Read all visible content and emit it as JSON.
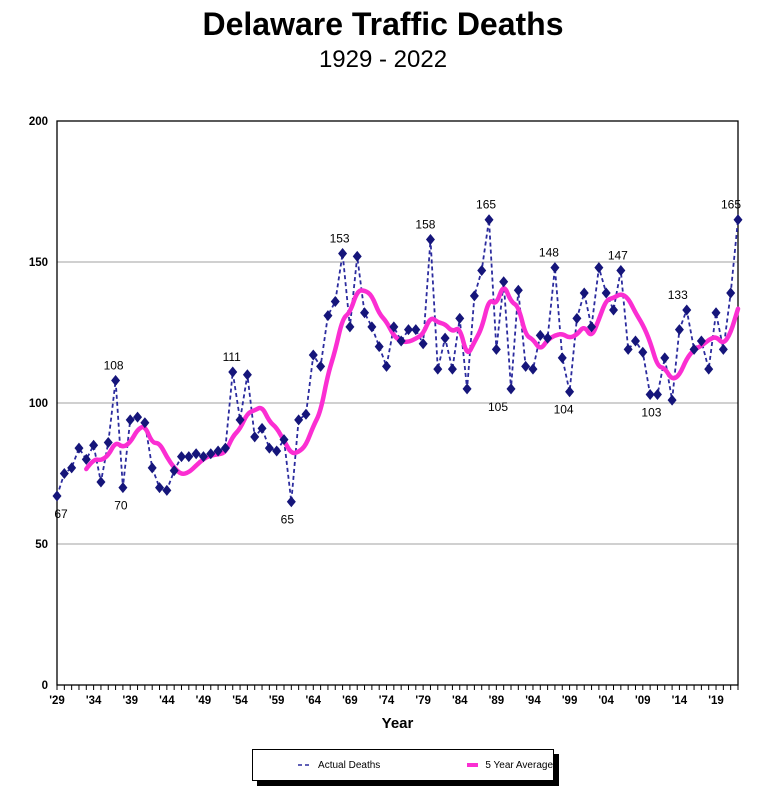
{
  "page": {
    "title": "Delaware Traffic Deaths",
    "subtitle": "1929 - 2022"
  },
  "chart_data": {
    "type": "line",
    "title": "Delaware Traffic Deaths",
    "subtitle": "1929 - 2022",
    "xlabel": "Year",
    "ylabel": "",
    "ylim": [
      0,
      200
    ],
    "yticks": [
      0,
      50,
      100,
      150,
      200
    ],
    "grid": "horizontal",
    "legend_position": "bottom",
    "xtick_labels": [
      "'29",
      "'34",
      "'39",
      "'44",
      "'49",
      "'54",
      "'59",
      "'64",
      "'69",
      "'74",
      "'79",
      "'84",
      "'89",
      "'94",
      "'99",
      "'04",
      "'09",
      "'14",
      "'19"
    ],
    "xtick_years": [
      1929,
      1934,
      1939,
      1944,
      1949,
      1954,
      1959,
      1964,
      1969,
      1974,
      1979,
      1984,
      1989,
      1994,
      1999,
      2004,
      2009,
      2014,
      2019
    ],
    "years": [
      1929,
      1930,
      1931,
      1932,
      1933,
      1934,
      1935,
      1936,
      1937,
      1938,
      1939,
      1940,
      1941,
      1942,
      1943,
      1944,
      1945,
      1946,
      1947,
      1948,
      1949,
      1950,
      1951,
      1952,
      1953,
      1954,
      1955,
      1956,
      1957,
      1958,
      1959,
      1960,
      1961,
      1962,
      1963,
      1964,
      1965,
      1966,
      1967,
      1968,
      1969,
      1970,
      1971,
      1972,
      1973,
      1974,
      1975,
      1976,
      1977,
      1978,
      1979,
      1980,
      1981,
      1982,
      1983,
      1984,
      1985,
      1986,
      1987,
      1988,
      1989,
      1990,
      1991,
      1992,
      1993,
      1994,
      1995,
      1996,
      1997,
      1998,
      1999,
      2000,
      2001,
      2002,
      2003,
      2004,
      2005,
      2006,
      2007,
      2008,
      2009,
      2010,
      2011,
      2012,
      2013,
      2014,
      2015,
      2016,
      2017,
      2018,
      2019,
      2020,
      2021,
      2022
    ],
    "series": [
      {
        "name": "Actual Deaths",
        "style": "dashed",
        "marker": "diamond",
        "color": "#2b2b9e",
        "marker_color": "#15157a",
        "values": [
          67,
          75,
          77,
          84,
          80,
          85,
          72,
          86,
          108,
          70,
          94,
          95,
          93,
          77,
          70,
          69,
          76,
          81,
          81,
          82,
          81,
          82,
          83,
          84,
          111,
          94,
          110,
          88,
          91,
          84,
          83,
          87,
          65,
          94,
          96,
          117,
          113,
          131,
          136,
          153,
          127,
          152,
          132,
          127,
          120,
          113,
          127,
          122,
          126,
          126,
          121,
          158,
          112,
          123,
          112,
          130,
          105,
          138,
          147,
          165,
          119,
          143,
          105,
          140,
          113,
          112,
          124,
          123,
          148,
          116,
          104,
          130,
          139,
          127,
          148,
          139,
          133,
          147,
          119,
          122,
          118,
          103,
          103,
          116,
          101,
          126,
          133,
          119,
          122,
          112,
          132,
          119,
          139,
          165
        ]
      },
      {
        "name": "5 Year Average",
        "style": "solid-smooth",
        "color": "#fb2ed2",
        "derived": "trailing 5-year mean of Actual Deaths (plotted from 1933)"
      }
    ],
    "annotations": [
      {
        "year": 1929,
        "text": "67",
        "placement": "below",
        "dx": 4
      },
      {
        "year": 1937,
        "text": "108",
        "placement": "above",
        "dx": -2
      },
      {
        "year": 1938,
        "text": "70",
        "placement": "below",
        "dx": -2
      },
      {
        "year": 1953,
        "text": "111",
        "placement": "above",
        "dx": -1
      },
      {
        "year": 1961,
        "text": "65",
        "placement": "below",
        "dx": -4
      },
      {
        "year": 1968,
        "text": "153",
        "placement": "above",
        "dx": -3
      },
      {
        "year": 1980,
        "text": "158",
        "placement": "above",
        "dx": -5
      },
      {
        "year": 1988,
        "text": "165",
        "placement": "above",
        "dx": -3
      },
      {
        "year": 1991,
        "text": "105",
        "placement": "below",
        "dx": -13
      },
      {
        "year": 1997,
        "text": "148",
        "placement": "above",
        "dx": -6
      },
      {
        "year": 1999,
        "text": "104",
        "placement": "below",
        "dx": -6
      },
      {
        "year": 2006,
        "text": "147",
        "placement": "above",
        "dx": -3
      },
      {
        "year": 2011,
        "text": "103",
        "placement": "below",
        "dx": -6
      },
      {
        "year": 2015,
        "text": "133",
        "placement": "above",
        "dx": -9
      },
      {
        "year": 2022,
        "text": "165",
        "placement": "above",
        "dx": -7
      }
    ],
    "colors": {
      "actual_line": "#2b2b9e",
      "actual_marker": "#15157a",
      "average_line": "#fb2ed2",
      "gridline": "#a0a0a0",
      "axis": "#000000"
    }
  },
  "legend": {
    "items": [
      {
        "label": "Actual Deaths"
      },
      {
        "label": "5 Year Average"
      }
    ]
  }
}
